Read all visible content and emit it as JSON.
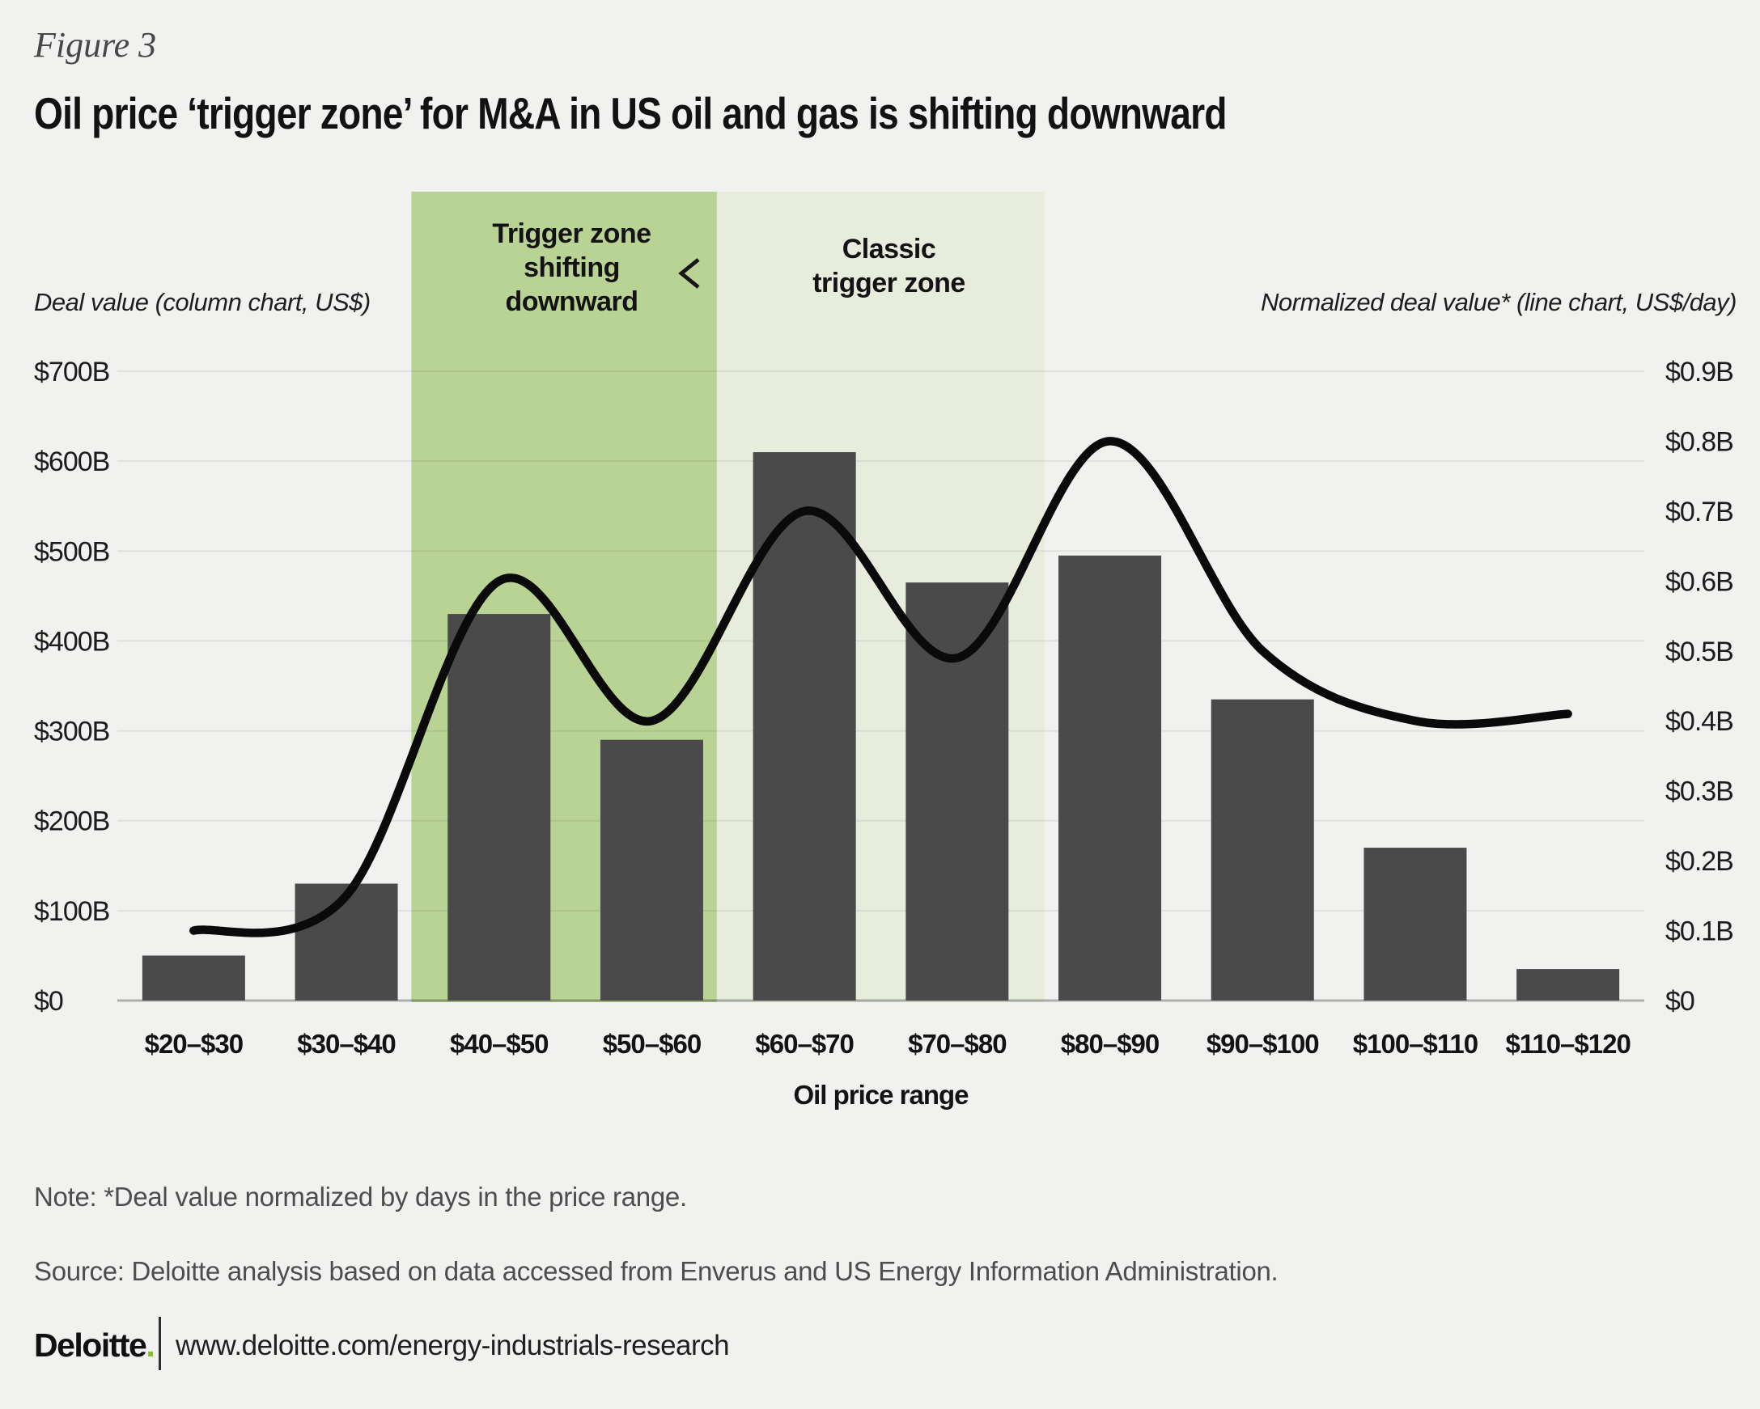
{
  "figure_label": "Figure 3",
  "title": "Oil price ‘trigger zone’ for M&A in US oil and gas is shifting downward",
  "left_axis": {
    "title": "Deal value (column chart, US$)",
    "tick_labels": [
      "$0",
      "$100B",
      "$200B",
      "$300B",
      "$400B",
      "$500B",
      "$600B",
      "$700B"
    ],
    "min": 0,
    "max": 700,
    "step": 100
  },
  "right_axis": {
    "title": "Normalized deal value* (line chart, US$/day)",
    "tick_labels": [
      "$0",
      "$0.1B",
      "$0.2B",
      "$0.3B",
      "$0.4B",
      "$0.5B",
      "$0.6B",
      "$0.7B",
      "$0.8B",
      "$0.9B"
    ],
    "min": 0,
    "max": 0.9,
    "step": 0.1
  },
  "x_axis": {
    "title": "Oil price range",
    "categories": [
      "$20–$30",
      "$30–$40",
      "$40–$50",
      "$50–$60",
      "$60–$70",
      "$70–$80",
      "$80–$90",
      "$90–$100",
      "$100–$110",
      "$110–$120"
    ]
  },
  "zones": [
    {
      "label_lines": [
        "Trigger zone",
        "shifting",
        "downward"
      ],
      "categories": [
        "$40–$50",
        "$50–$60"
      ],
      "color": "#b9d395"
    },
    {
      "label_lines": [
        "Classic",
        "trigger zone"
      ],
      "categories": [
        "$60–$70",
        "$70–$80"
      ],
      "color": "#e7ecdd"
    }
  ],
  "chart_data": {
    "type": "bar+line",
    "categories": [
      "$20–$30",
      "$30–$40",
      "$40–$50",
      "$50–$60",
      "$60–$70",
      "$70–$80",
      "$80–$90",
      "$90–$100",
      "$100–$110",
      "$110–$120"
    ],
    "series": [
      {
        "name": "Deal value (column chart, US$)",
        "type": "bar",
        "axis": "left",
        "unit": "US$ billions",
        "values": [
          50,
          130,
          430,
          290,
          610,
          465,
          495,
          335,
          170,
          35
        ]
      },
      {
        "name": "Normalized deal value* (line chart, US$/day)",
        "type": "line",
        "axis": "right",
        "unit": "US$ billions per day",
        "values": [
          0.1,
          0.15,
          0.6,
          0.4,
          0.7,
          0.49,
          0.8,
          0.5,
          0.4,
          0.41
        ]
      }
    ],
    "left_ylim": [
      0,
      700
    ],
    "right_ylim": [
      0,
      0.9
    ],
    "grid": "horizontal",
    "xlabel": "Oil price range"
  },
  "note": "Note: *Deal value normalized by days in the price range.",
  "source": "Source: Deloitte analysis based on data accessed from Enverus and US Energy Information Administration.",
  "footer": {
    "brand": "Deloitte",
    "brand_dot": ".",
    "url": "www.deloitte.com/energy-industrials-research"
  },
  "colors": {
    "background": "#f1f1ef",
    "bar": "#4a4a4a",
    "line": "#0a0a0a",
    "zone_dark_green": "#b9d395",
    "zone_light_green": "#e7ecdd",
    "gridline": "rgba(0,0,0,0.065)",
    "baseline": "rgba(0,0,0,0.28)",
    "tick_text": "#1c1c1c",
    "brand_green": "#86bc25"
  }
}
